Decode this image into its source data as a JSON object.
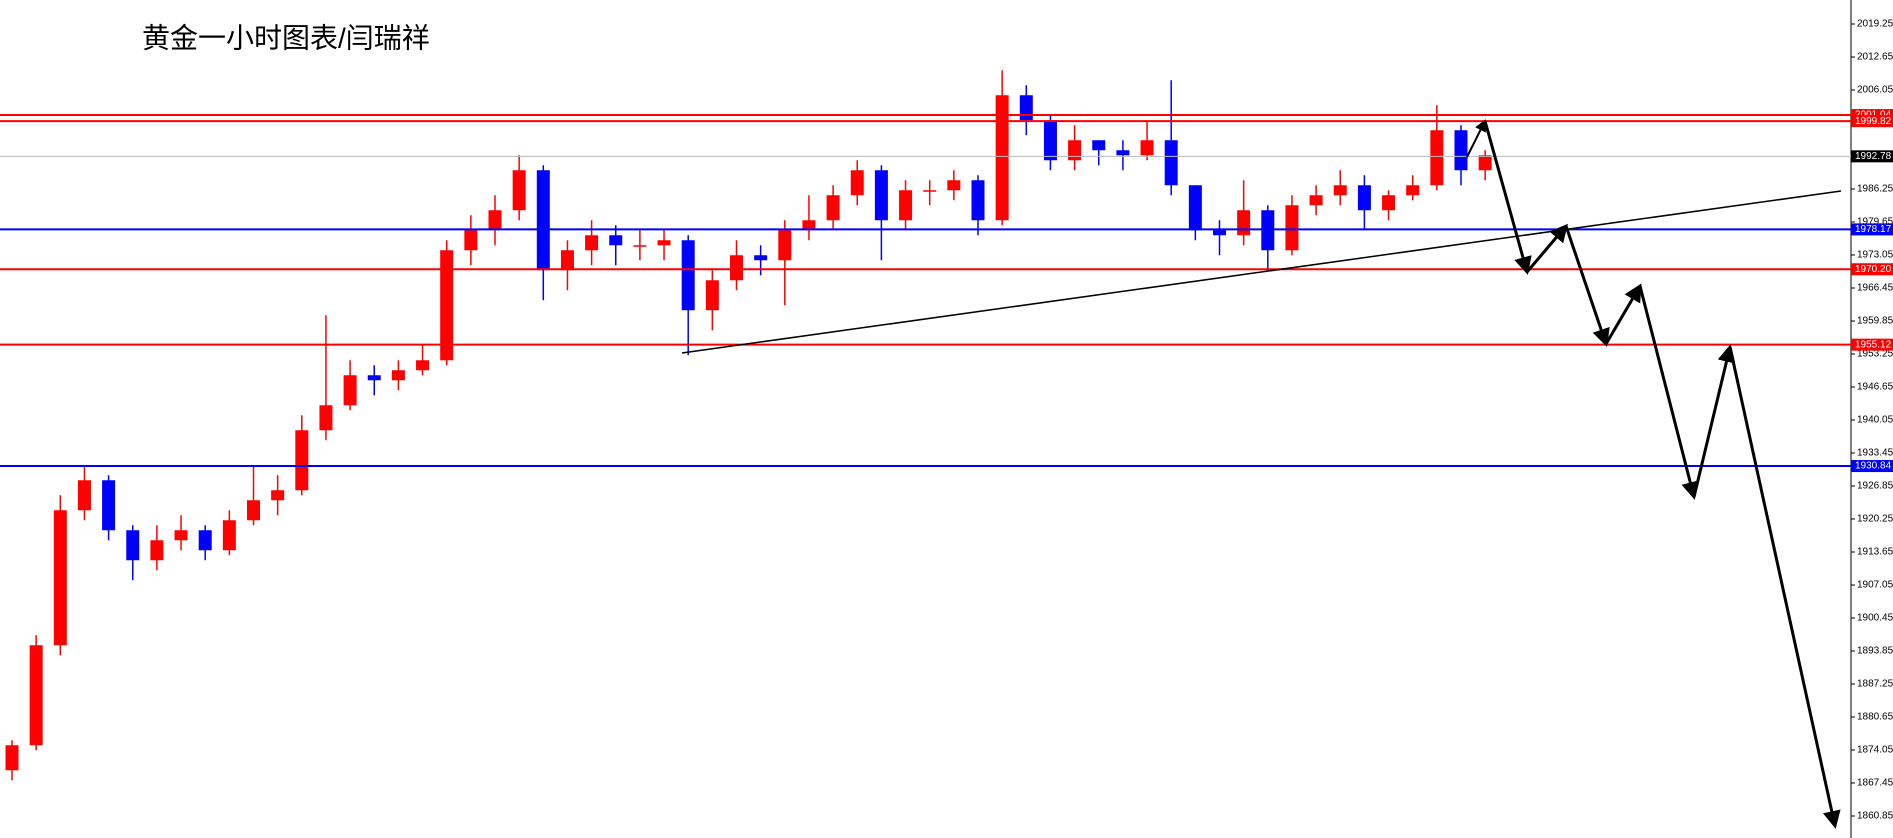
{
  "chart_data": {
    "type": "candlestick",
    "title": "黄金一小时图表/闫瑞祥",
    "open": [
      1870,
      1875,
      1895,
      1922,
      1928,
      1918,
      1912,
      1916,
      1918,
      1914,
      1920,
      1924,
      1926,
      1938,
      1943,
      1949,
      1948,
      1950,
      1952,
      1974,
      1978,
      1982,
      1990,
      1970,
      1974,
      1977,
      1975,
      1975,
      1976,
      1962,
      1968,
      1973,
      1972,
      1978,
      1980,
      1985,
      1990,
      1980,
      1986,
      1986,
      1988,
      1980,
      2005,
      2000,
      1992,
      1996,
      1994,
      1993,
      1996,
      1987,
      1978,
      1977,
      1982,
      1974,
      1983,
      1985,
      1987,
      1982,
      1985,
      1987,
      1998,
      1990
    ],
    "high": [
      1876,
      1897,
      1925,
      1931,
      1929,
      1919,
      1919,
      1921,
      1919,
      1922,
      1931,
      1929,
      1941,
      1961,
      1952,
      1951,
      1952,
      1955,
      1976,
      1981,
      1985,
      1993,
      1991,
      1976,
      1980,
      1979,
      1978,
      1978,
      1977,
      1970,
      1976,
      1975,
      1980,
      1985,
      1987,
      1992,
      1991,
      1988,
      1988,
      1990,
      1989,
      2010,
      2007,
      2001,
      1999,
      1996,
      1996,
      2000,
      2008,
      1987,
      1980,
      1988,
      1983,
      1985,
      1987,
      1990,
      1989,
      1986,
      1989,
      2003,
      1999,
      1994
    ],
    "low": [
      1868,
      1874,
      1893,
      1920,
      1916,
      1908,
      1910,
      1914,
      1912,
      1913,
      1919,
      1921,
      1925,
      1936,
      1942,
      1945,
      1946,
      1949,
      1951,
      1971,
      1975,
      1980,
      1964,
      1966,
      1971,
      1971,
      1972,
      1972,
      1953,
      1958,
      1966,
      1969,
      1963,
      1976,
      1978,
      1983,
      1972,
      1978,
      1983,
      1984,
      1977,
      1979,
      1997,
      1990,
      1990,
      1991,
      1990,
      1992,
      1985,
      1976,
      1973,
      1975,
      1970,
      1973,
      1981,
      1983,
      1978,
      1980,
      1984,
      1986,
      1987,
      1988
    ],
    "close": [
      1875,
      1895,
      1922,
      1928,
      1918,
      1912,
      1916,
      1918,
      1914,
      1920,
      1924,
      1926,
      1938,
      1943,
      1949,
      1948,
      1950,
      1952,
      1974,
      1978,
      1982,
      1990,
      1970,
      1974,
      1977,
      1975,
      1975,
      1976,
      1962,
      1968,
      1973,
      1972,
      1978,
      1980,
      1985,
      1990,
      1980,
      1986,
      1986,
      1988,
      1980,
      2005,
      2000,
      1992,
      1996,
      1994,
      1993,
      1996,
      1987,
      1978,
      1977,
      1982,
      1974,
      1983,
      1985,
      1987,
      1982,
      1985,
      1987,
      1998,
      1990,
      1993
    ],
    "up_color": "#ff0000",
    "down_color": "#0000ff",
    "ylim": [
      1856.45,
      2024.05
    ],
    "yticks": [
      2019.25,
      2012.65,
      2006.05,
      1986.25,
      1979.65,
      1973.05,
      1966.45,
      1959.85,
      1953.25,
      1946.65,
      1940.05,
      1933.45,
      1926.85,
      1920.25,
      1913.65,
      1907.05,
      1900.45,
      1893.85,
      1887.25,
      1880.65,
      1874.05,
      1867.45,
      1860.85
    ],
    "levels": [
      {
        "value": 2001.04,
        "color": "#ff0000"
      },
      {
        "value": 1999.82,
        "color": "#ff0000"
      },
      {
        "value": 1992.78,
        "color": "#000000"
      },
      {
        "value": 1978.17,
        "color": "#0000ff"
      },
      {
        "value": 1970.2,
        "label": "1970.20",
        "color": "#ff0000"
      },
      {
        "value": 1955.12,
        "color": "#ff0000"
      },
      {
        "value": 1930.84,
        "color": "#0000ff"
      }
    ]
  }
}
